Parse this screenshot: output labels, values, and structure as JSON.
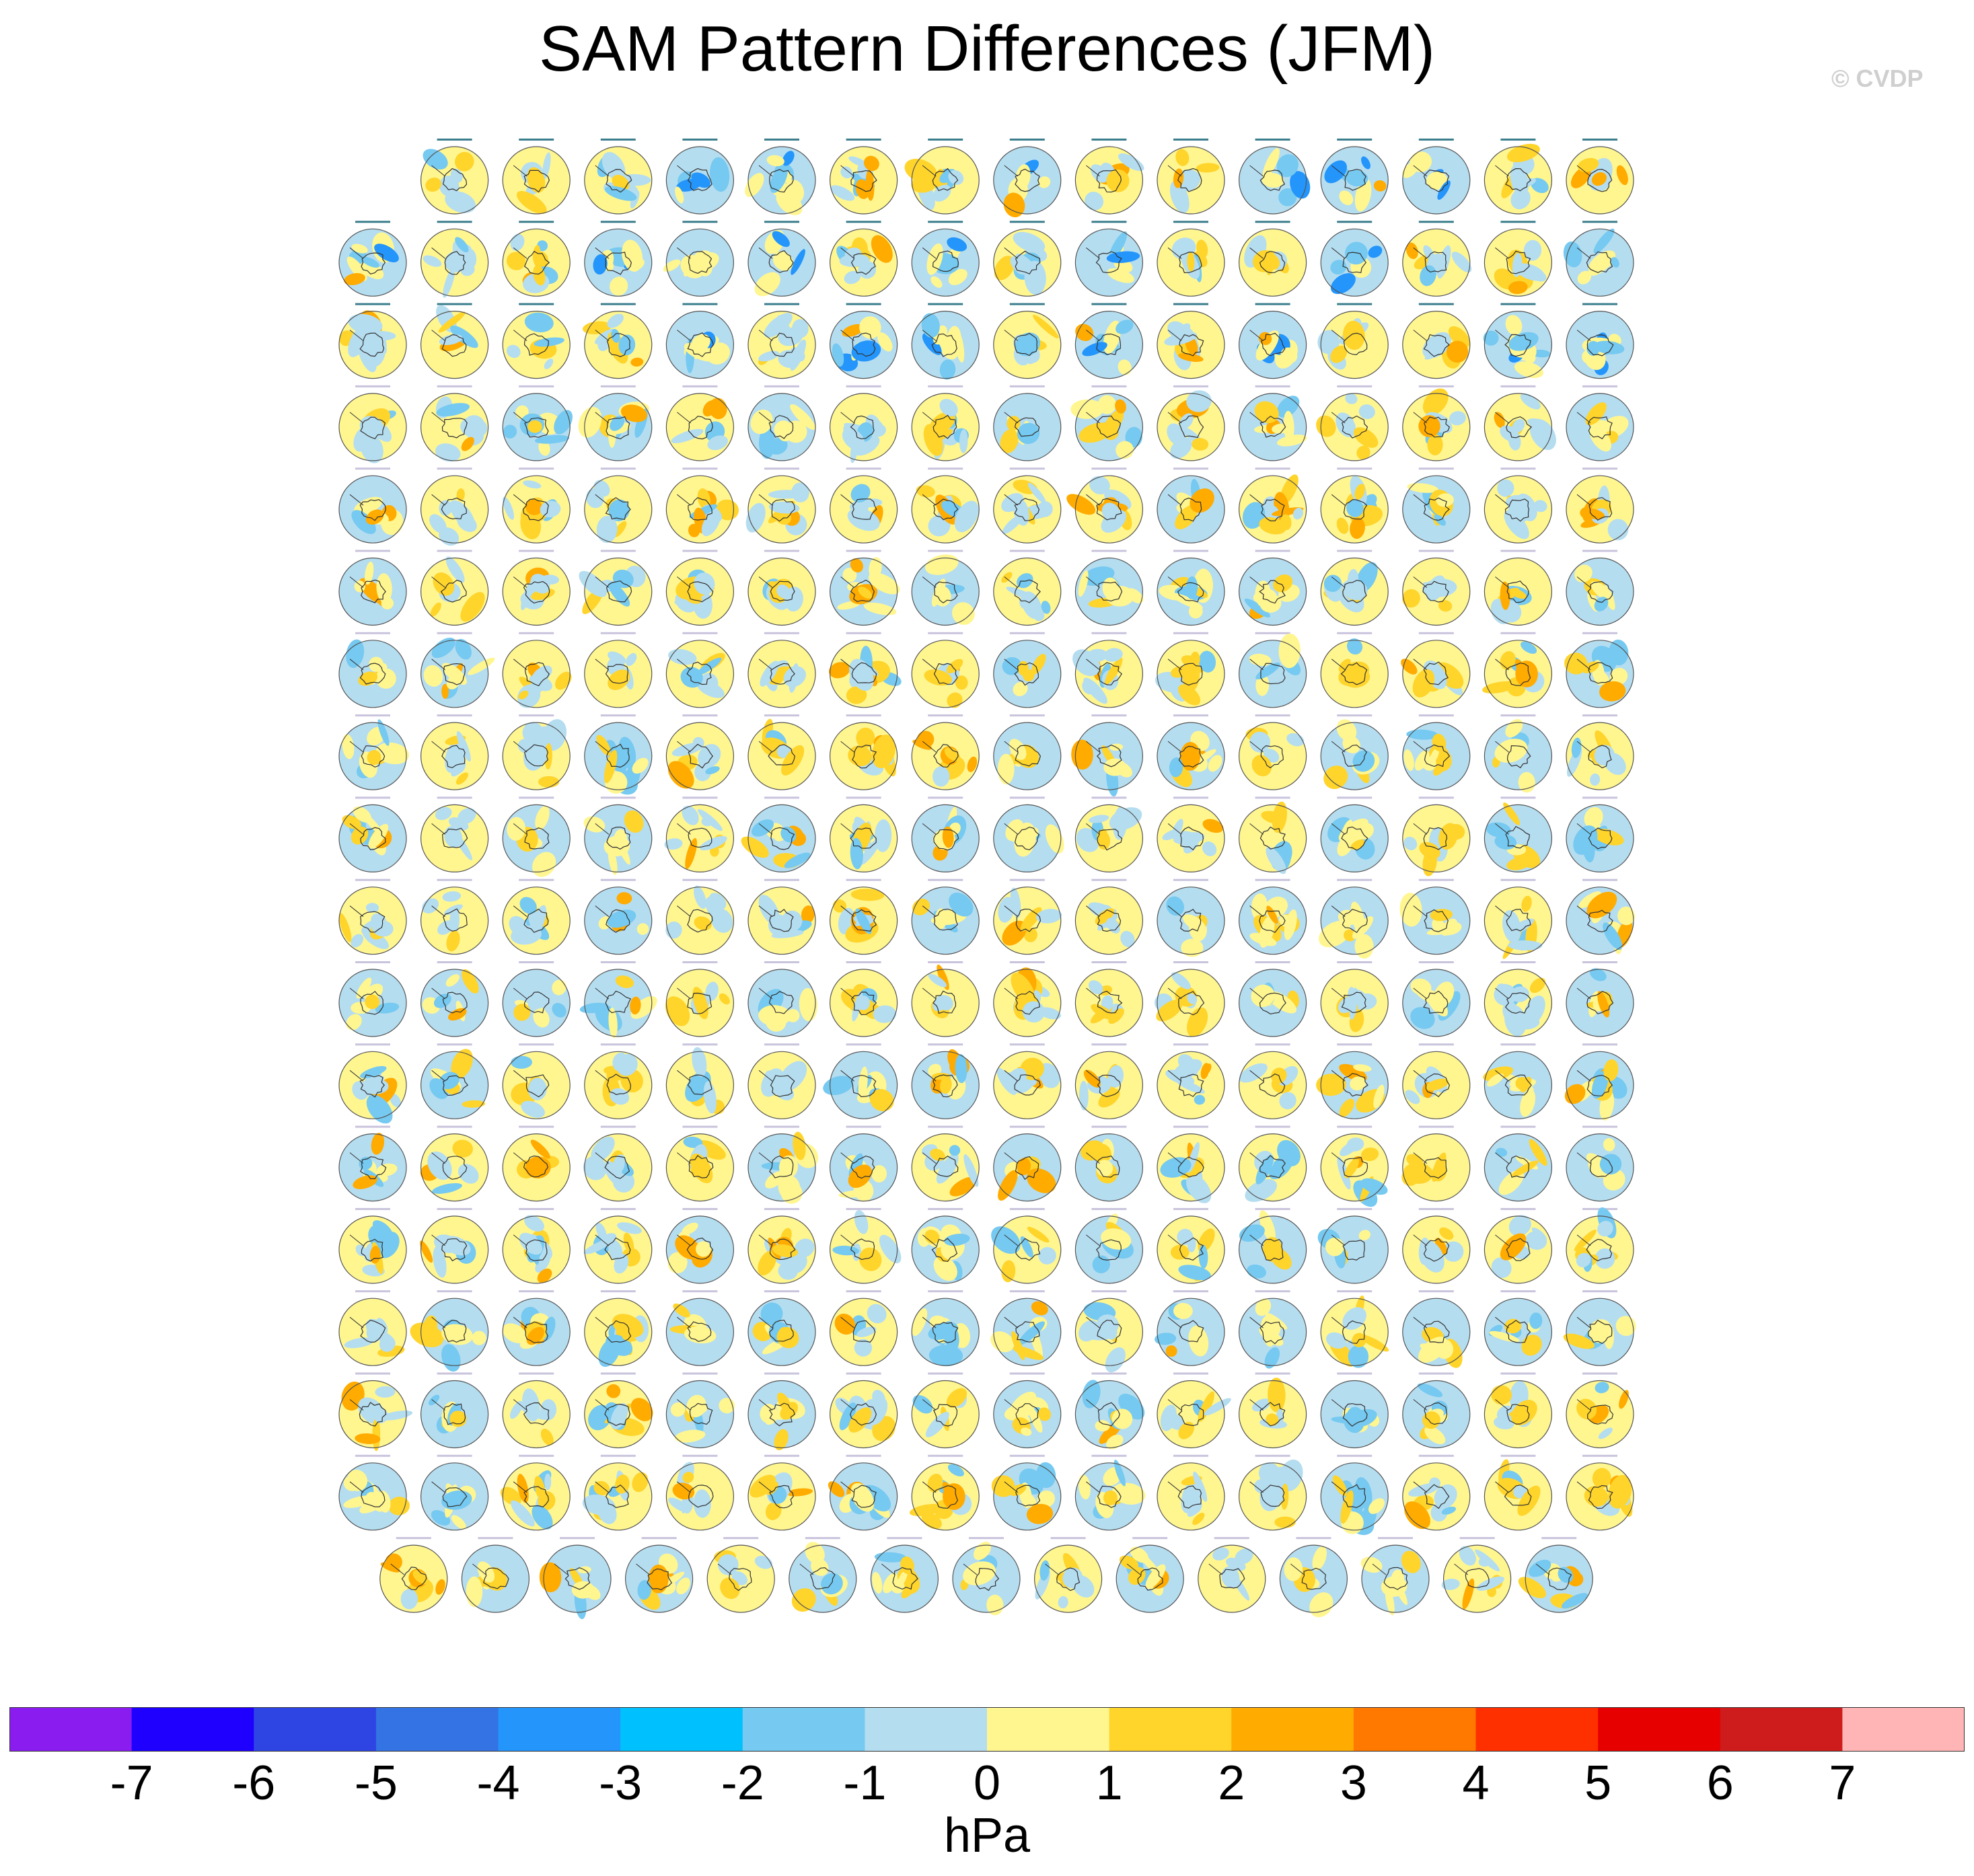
{
  "title": "SAM Pattern Differences (JFM)",
  "watermark": "© CVDP",
  "chart_data": {
    "type": "heatmap",
    "title": "SAM Pattern Differences (JFM)",
    "description_kind": "multi-panel polar stereographic maps",
    "panel_layout_rows": [
      15,
      16,
      16,
      16,
      16,
      16,
      16,
      16,
      16,
      16,
      16,
      16,
      16,
      16,
      16,
      16,
      16,
      15
    ],
    "panel_count": 286,
    "colorbar": {
      "units": "hPa",
      "levels": [
        -7,
        -6,
        -5,
        -4,
        -3,
        -2,
        -1,
        0,
        1,
        2,
        3,
        4,
        5,
        6,
        7
      ],
      "tick_labels": [
        "-7",
        "-6",
        "-5",
        "-4",
        "-3",
        "-2",
        "-1",
        "0",
        "1",
        "2",
        "3",
        "4",
        "5",
        "6",
        "7"
      ],
      "colors": [
        "#8a1cf0",
        "#1f00ff",
        "#2f45e3",
        "#3373e3",
        "#2395fb",
        "#00c1fd",
        "#76c9f0",
        "#b5ddf0",
        "#fff690",
        "#ffd42b",
        "#ffab00",
        "#ff7800",
        "#ff3000",
        "#e60000",
        "#ce1b1b",
        "#ffb5b5"
      ]
    }
  }
}
